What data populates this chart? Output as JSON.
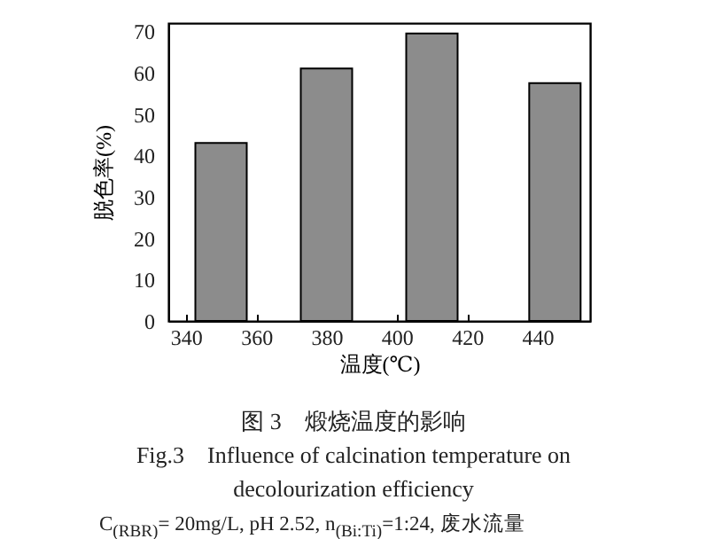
{
  "chart_data": {
    "type": "bar",
    "xlabel": "温度(℃)",
    "ylabel": "脱色率(%)",
    "x": [
      350,
      380,
      410,
      445
    ],
    "values": [
      43,
      61,
      69.5,
      57.5
    ],
    "color": "#8c8c8c",
    "xlim": [
      335,
      455
    ],
    "xticks": [
      340,
      360,
      380,
      400,
      420,
      440
    ],
    "ylim": [
      0,
      72
    ],
    "yticks": [
      0,
      10,
      20,
      30,
      40,
      50,
      60,
      70
    ],
    "grid": false,
    "legend": false,
    "annotations": [
      "图 3　煅烧温度的影响",
      "Fig.3　Influence of calcination temperature on decolourization efficiency",
      "C$_{(RBR)}$= 20mg/L, pH 2.52, n$_{(Bi:Ti)}$=1:24, 废水流量"
    ]
  }
}
